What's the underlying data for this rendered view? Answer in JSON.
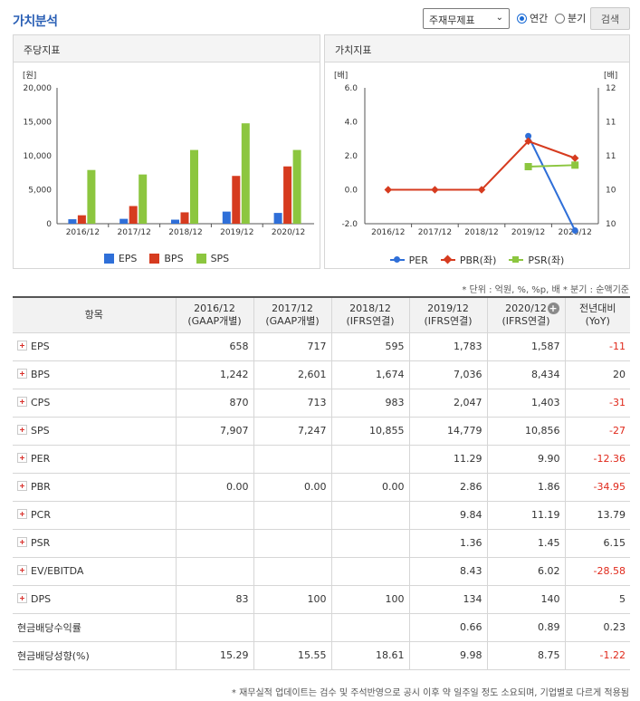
{
  "header": {
    "title": "가치분석",
    "select_value": "주재무제표",
    "radio_annual": "연간",
    "radio_quarter": "분기",
    "search_label": "검색"
  },
  "left_panel": {
    "title": "주당지표"
  },
  "right_panel": {
    "title": "가치지표"
  },
  "colors": {
    "eps": "#2f6fd8",
    "bps": "#d63b1f",
    "sps": "#8cc63f",
    "per": "#2f6fd8",
    "pbr": "#d63b1f",
    "psr": "#8cc63f"
  },
  "chart_data": [
    {
      "type": "bar",
      "title": "주당지표",
      "ylabel": "[원]",
      "ylim": [
        0,
        20000
      ],
      "yticks": [
        "20,000",
        "15,000",
        "10,000",
        "5,000",
        "0"
      ],
      "categories": [
        "2016/12",
        "2017/12",
        "2018/12",
        "2019/12",
        "2020/12"
      ],
      "series": [
        {
          "name": "EPS",
          "values": [
            658,
            717,
            595,
            1783,
            1587
          ]
        },
        {
          "name": "BPS",
          "values": [
            1242,
            2601,
            1674,
            7036,
            8434
          ]
        },
        {
          "name": "SPS",
          "values": [
            7907,
            7247,
            10855,
            14779,
            10856
          ]
        }
      ],
      "legend": "bottom"
    },
    {
      "type": "line",
      "title": "가치지표",
      "ylabel_left": "[배]",
      "ylabel_right": "[배]",
      "ylim_left": [
        -2,
        6
      ],
      "ylim_right": [
        10,
        12
      ],
      "yticks_left": [
        "6.0",
        "4.0",
        "2.0",
        "0.0",
        "-2.0"
      ],
      "yticks_right": [
        "12",
        "11",
        "11",
        "10",
        "10"
      ],
      "categories": [
        "2016/12",
        "2017/12",
        "2018/12",
        "2019/12",
        "2020/12"
      ],
      "series": [
        {
          "name": "PER",
          "axis": "right",
          "values": [
            null,
            null,
            null,
            11.29,
            9.9
          ]
        },
        {
          "name": "PBR(좌)",
          "axis": "left",
          "values": [
            0.0,
            0.0,
            0.0,
            2.86,
            1.86
          ]
        },
        {
          "name": "PSR(좌)",
          "axis": "left",
          "values": [
            null,
            null,
            null,
            1.36,
            1.45
          ]
        }
      ],
      "legend": "bottom"
    }
  ],
  "note": "* 단위 : 억원, %, %p, 배    * 분기 : 순액기준",
  "table": {
    "columns": [
      [
        "항목",
        ""
      ],
      [
        "2016/12",
        "(GAAP개별)"
      ],
      [
        "2017/12",
        "(GAAP개별)"
      ],
      [
        "2018/12",
        "(IFRS연결)"
      ],
      [
        "2019/12",
        "(IFRS연결)"
      ],
      [
        "2020/12",
        "(IFRS연결)"
      ],
      [
        "전년대비",
        "(YoY)"
      ]
    ],
    "rows": [
      {
        "label": "EPS",
        "expand": true,
        "values": [
          "658",
          "717",
          "595",
          "1,783",
          "1,587",
          "-11"
        ]
      },
      {
        "label": "BPS",
        "expand": true,
        "values": [
          "1,242",
          "2,601",
          "1,674",
          "7,036",
          "8,434",
          "20"
        ]
      },
      {
        "label": "CPS",
        "expand": true,
        "values": [
          "870",
          "713",
          "983",
          "2,047",
          "1,403",
          "-31"
        ]
      },
      {
        "label": "SPS",
        "expand": true,
        "values": [
          "7,907",
          "7,247",
          "10,855",
          "14,779",
          "10,856",
          "-27"
        ]
      },
      {
        "label": "PER",
        "expand": true,
        "values": [
          "",
          "",
          "",
          "11.29",
          "9.90",
          "-12.36"
        ]
      },
      {
        "label": "PBR",
        "expand": true,
        "values": [
          "0.00",
          "0.00",
          "0.00",
          "2.86",
          "1.86",
          "-34.95"
        ]
      },
      {
        "label": "PCR",
        "expand": true,
        "values": [
          "",
          "",
          "",
          "9.84",
          "11.19",
          "13.79"
        ]
      },
      {
        "label": "PSR",
        "expand": true,
        "values": [
          "",
          "",
          "",
          "1.36",
          "1.45",
          "6.15"
        ]
      },
      {
        "label": "EV/EBITDA",
        "expand": true,
        "values": [
          "",
          "",
          "",
          "8.43",
          "6.02",
          "-28.58"
        ]
      },
      {
        "label": "DPS",
        "expand": true,
        "values": [
          "83",
          "100",
          "100",
          "134",
          "140",
          "5"
        ]
      },
      {
        "label": "현금배당수익률",
        "expand": false,
        "values": [
          "",
          "",
          "",
          "0.66",
          "0.89",
          "0.23"
        ]
      },
      {
        "label": "현금배당성향(%)",
        "expand": false,
        "values": [
          "15.29",
          "15.55",
          "18.61",
          "9.98",
          "8.75",
          "-1.22"
        ]
      }
    ]
  },
  "footnote": "* 재무실적 업데이트는 검수 및 주석반영으로 공시 이후 약 일주일 정도 소요되며, 기업별로 다르게 적용됨"
}
